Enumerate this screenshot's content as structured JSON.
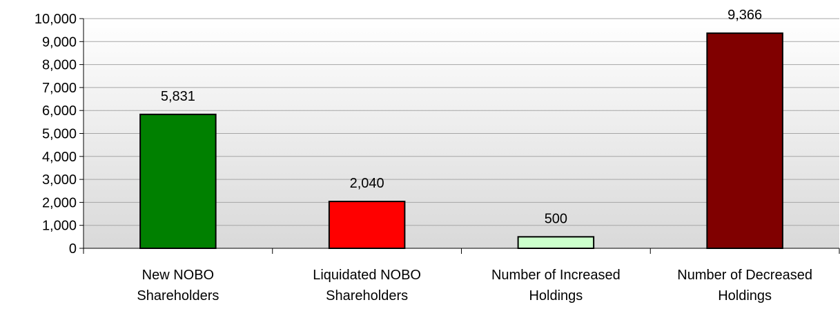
{
  "chart_data": {
    "type": "bar",
    "title": "",
    "xlabel": "",
    "ylabel": "",
    "categories": [
      [
        "New NOBO",
        "Shareholders"
      ],
      [
        "Liquidated NOBO",
        "Shareholders"
      ],
      [
        "Number of Increased",
        "Holdings"
      ],
      [
        "Number of Decreased",
        "Holdings"
      ]
    ],
    "values": [
      5831,
      2040,
      500,
      9366
    ],
    "value_labels": [
      "5,831",
      "2,040",
      "500",
      "9,366"
    ],
    "bar_colors": [
      "#008000",
      "#ff0000",
      "#ccffcc",
      "#800000"
    ],
    "ylim": [
      0,
      10000
    ],
    "yticks": [
      0,
      1000,
      2000,
      3000,
      4000,
      5000,
      6000,
      7000,
      8000,
      9000,
      10000
    ],
    "ytick_labels": [
      "0",
      "1,000",
      "2,000",
      "3,000",
      "4,000",
      "5,000",
      "6,000",
      "7,000",
      "8,000",
      "9,000",
      "10,000"
    ],
    "grid": true,
    "legend": "none"
  },
  "colors": {
    "plot_bg_top": "#ffffff",
    "plot_bg_bottom": "#d9d9d9",
    "gridline": "#a6a6a6",
    "axis": "#000000",
    "bar_edge": "#000000"
  }
}
